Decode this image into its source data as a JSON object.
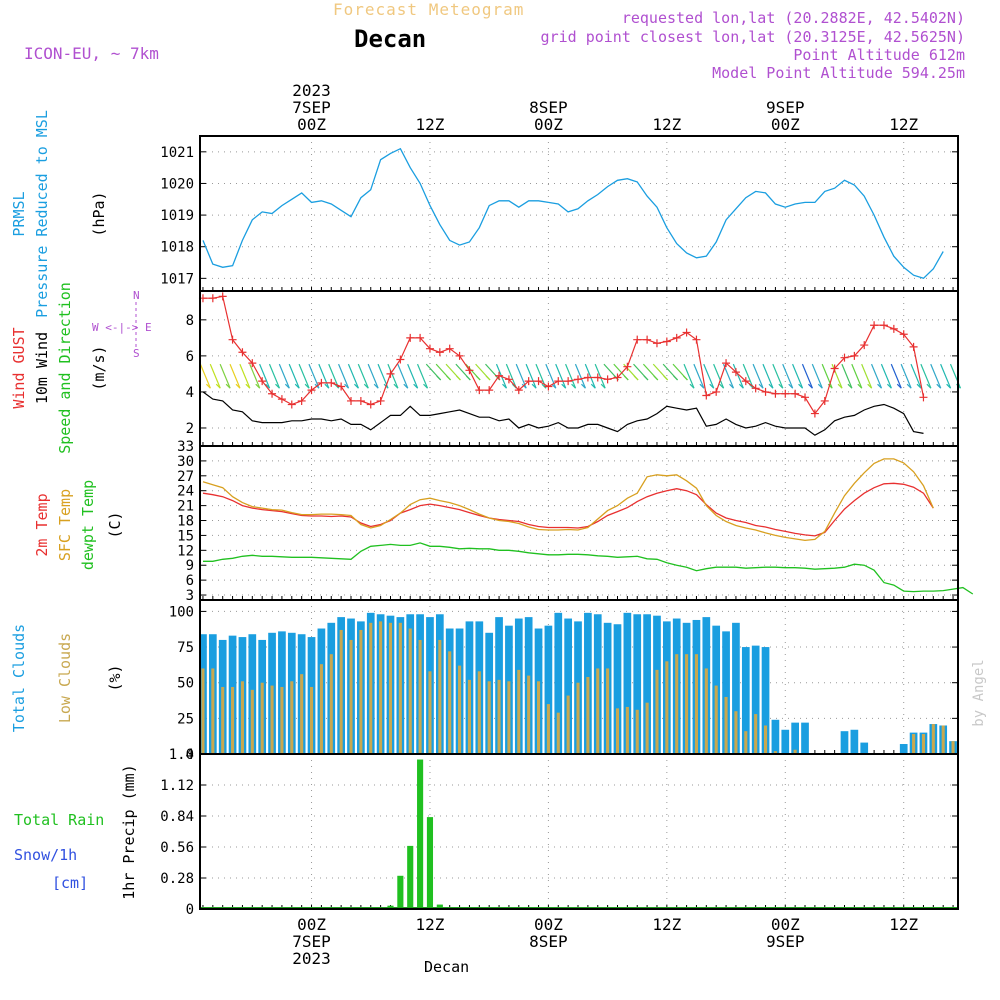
{
  "header": {
    "top_title": "Forecast Meteogram",
    "location": "Decan",
    "model": "ICON-EU, ~ 7km",
    "requested": "requested lon,lat (20.2882E, 42.5402N)",
    "grid_point": "grid point closest lon,lat (20.3125E, 42.5625N)",
    "point_alt": "Point Altitude 612m",
    "model_alt": "Model Point Altitude 594.25m",
    "footer_name": "Decan",
    "credit": "by Angel"
  },
  "time_axis": {
    "top_labels": [
      {
        "t": 6,
        "lines": [
          "2023",
          "7SEP",
          "00Z"
        ]
      },
      {
        "t": 18,
        "lines": [
          "12Z"
        ]
      },
      {
        "t": 30,
        "lines": [
          "8SEP",
          "00Z"
        ]
      },
      {
        "t": 42,
        "lines": [
          "12Z"
        ]
      },
      {
        "t": 54,
        "lines": [
          "9SEP",
          "00Z"
        ]
      },
      {
        "t": 66,
        "lines": [
          "12Z"
        ]
      }
    ],
    "bottom_labels": [
      {
        "t": 6,
        "lines": [
          "00Z",
          "7SEP",
          "2023"
        ]
      },
      {
        "t": 18,
        "lines": [
          "12Z"
        ]
      },
      {
        "t": 30,
        "lines": [
          "00Z",
          "8SEP"
        ]
      },
      {
        "t": 42,
        "lines": [
          "12Z"
        ]
      },
      {
        "t": 54,
        "lines": [
          "00Z",
          "9SEP"
        ]
      },
      {
        "t": 66,
        "lines": [
          "12Z"
        ]
      }
    ],
    "range_hours": [
      -5.3,
      71.5
    ]
  },
  "colors": {
    "pressure": "#1a9ee0",
    "gust": "#e83030",
    "wind": "#000000",
    "temp2m": "#e83030",
    "sfc": "#d8a020",
    "dewpt": "#20c020",
    "total_clouds": "#1a9ee0",
    "low_clouds": "#c8a850",
    "rain": "#20c020",
    "snow": "#3050e0",
    "purple": "#b050d0",
    "title": "#000000",
    "faint_title": "#f0c880"
  },
  "panel_labels": {
    "pressure": {
      "l1": "PRMSL",
      "l2": "Pressure Reduced to MSL",
      "unit": "(hPa)"
    },
    "wind": {
      "l1": "Wind GUST",
      "l2": "10m Wind",
      "l3": "Speed and Direction",
      "unit": "(m/s)",
      "compass_n": "N",
      "compass_s": "S",
      "compass_we": "W <-|-> E"
    },
    "temp": {
      "l1": "2m Temp",
      "l2": "SFC Temp",
      "l3": "dewpt Temp",
      "unit": "(C)"
    },
    "clouds": {
      "l1": "Total Clouds",
      "l2": "Low Clouds",
      "unit": "(%)"
    },
    "precip": {
      "l1": "Total  Rain",
      "l2": "Snow/1h",
      "l3": "[cm]",
      "unit": "1hr Precip (mm)"
    }
  },
  "chart_data": [
    {
      "type": "line",
      "title": "PRMSL Pressure Reduced to MSL",
      "ylabel": "(hPa)",
      "ylim": [
        1016.6,
        1021.5
      ],
      "yticks": [
        "1017",
        "1018",
        "1019",
        "1020",
        "1021"
      ],
      "series": [
        {
          "name": "PRMSL",
          "x_start": -5,
          "step": 1,
          "values": [
            1018.2,
            1017.45,
            1017.35,
            1017.4,
            1018.2,
            1018.85,
            1019.1,
            1019.05,
            1019.3,
            1019.5,
            1019.7,
            1019.4,
            1019.45,
            1019.35,
            1019.15,
            1018.95,
            1019.55,
            1019.8,
            1020.75,
            1020.95,
            1021.1,
            1020.5,
            1020.0,
            1019.3,
            1018.7,
            1018.2,
            1018.05,
            1018.15,
            1018.6,
            1019.3,
            1019.45,
            1019.45,
            1019.25,
            1019.45,
            1019.45,
            1019.4,
            1019.35,
            1019.1,
            1019.2,
            1019.45,
            1019.65,
            1019.9,
            1020.1,
            1020.15,
            1020.05,
            1019.6,
            1019.25,
            1018.6,
            1018.1,
            1017.8,
            1017.65,
            1017.7,
            1018.15,
            1018.85,
            1019.2,
            1019.55,
            1019.75,
            1019.7,
            1019.35,
            1019.25,
            1019.35,
            1019.4,
            1019.4,
            1019.75,
            1019.85,
            1020.1,
            1019.95,
            1019.6,
            1019.0,
            1018.3,
            1017.7,
            1017.35,
            1017.1,
            1017.0,
            1017.3,
            1017.85
          ]
        }
      ]
    },
    {
      "type": "line",
      "title": "Wind GUST / 10m Wind Speed and Direction",
      "ylabel": "(m/s)",
      "ylim": [
        1.0,
        9.6
      ],
      "yticks": [
        "2",
        "4",
        "6",
        "8"
      ],
      "series": [
        {
          "name": "Wind GUST",
          "x_start": -5,
          "step": 1,
          "values": [
            9.2,
            9.2,
            9.3,
            6.9,
            6.2,
            5.6,
            4.6,
            3.9,
            3.6,
            3.3,
            3.5,
            4.1,
            4.5,
            4.5,
            4.3,
            3.5,
            3.5,
            3.3,
            3.5,
            5.0,
            5.8,
            7.0,
            7.0,
            6.4,
            6.2,
            6.4,
            6.0,
            5.2,
            4.1,
            4.1,
            4.9,
            4.7,
            4.1,
            4.6,
            4.6,
            4.3,
            4.6,
            4.6,
            4.7,
            4.8,
            4.8,
            4.7,
            4.8,
            5.4,
            6.9,
            6.9,
            6.7,
            6.8,
            7.0,
            7.3,
            6.9,
            3.8,
            4.0,
            5.6,
            5.1,
            4.6,
            4.2,
            4.0,
            3.9,
            3.9,
            3.9,
            3.7,
            2.8,
            3.5,
            5.3,
            5.9,
            6.0,
            6.6,
            7.7,
            7.7,
            7.5,
            7.2,
            6.5,
            3.7
          ]
        },
        {
          "name": "10m Wind",
          "x_start": -5,
          "step": 1,
          "values": [
            4.0,
            3.6,
            3.5,
            3.0,
            2.9,
            2.4,
            2.3,
            2.3,
            2.3,
            2.4,
            2.4,
            2.5,
            2.5,
            2.4,
            2.5,
            2.2,
            2.2,
            1.9,
            2.3,
            2.7,
            2.7,
            3.2,
            2.7,
            2.7,
            2.8,
            2.9,
            3.0,
            2.8,
            2.6,
            2.6,
            2.4,
            2.5,
            2.0,
            2.2,
            2.0,
            2.1,
            2.3,
            2.0,
            2.0,
            2.2,
            2.2,
            2.0,
            1.8,
            2.2,
            2.4,
            2.5,
            2.8,
            3.2,
            3.1,
            3.0,
            3.1,
            2.1,
            2.2,
            2.5,
            2.2,
            2.0,
            2.1,
            2.3,
            2.1,
            2.0,
            2.0,
            2.0,
            1.6,
            1.9,
            2.4,
            2.6,
            2.7,
            3.0,
            3.2,
            3.3,
            3.1,
            2.8,
            1.8,
            1.7
          ]
        }
      ]
    },
    {
      "type": "line",
      "title": "2m Temp / SFC Temp / dewpt Temp",
      "ylabel": "(C)",
      "ylim": [
        2,
        33
      ],
      "yticks": [
        "3",
        "6",
        "9",
        "12",
        "15",
        "18",
        "21",
        "24",
        "27",
        "30",
        "33"
      ],
      "series": [
        {
          "name": "2m Temp",
          "x_start": -5,
          "step": 1,
          "values": [
            23.5,
            23.2,
            22.8,
            22.0,
            21.0,
            20.5,
            20.2,
            20.0,
            19.8,
            19.4,
            19.0,
            18.9,
            18.9,
            18.8,
            18.9,
            18.7,
            17.5,
            16.8,
            17.2,
            18.0,
            19.5,
            20.2,
            21.0,
            21.3,
            21.0,
            20.6,
            20.2,
            19.6,
            19.0,
            18.5,
            18.2,
            18.0,
            17.8,
            17.2,
            16.8,
            16.6,
            16.6,
            16.6,
            16.5,
            16.8,
            17.8,
            19.0,
            19.8,
            20.6,
            21.8,
            22.8,
            23.5,
            24.0,
            24.4,
            24.0,
            23.2,
            21.2,
            19.5,
            18.5,
            18.0,
            17.6,
            17.0,
            16.7,
            16.2,
            15.8,
            15.4,
            15.1,
            14.9,
            15.6,
            18.0,
            20.3,
            22.0,
            23.5,
            24.6,
            25.4,
            25.5,
            25.3,
            24.7,
            23.5,
            20.5
          ]
        },
        {
          "name": "SFC Temp",
          "x_start": -5,
          "step": 1,
          "values": [
            25.8,
            25.2,
            24.6,
            22.8,
            21.6,
            20.8,
            20.5,
            20.2,
            20.1,
            19.6,
            19.2,
            19.2,
            19.3,
            19.3,
            19.2,
            19.0,
            17.2,
            16.5,
            17.0,
            18.2,
            19.5,
            21.2,
            22.2,
            22.5,
            22.0,
            21.6,
            21.0,
            20.2,
            19.3,
            18.5,
            18.0,
            17.8,
            17.4,
            16.7,
            16.2,
            16.1,
            16.1,
            16.2,
            16.1,
            16.6,
            18.3,
            20.0,
            21.0,
            22.5,
            23.5,
            26.8,
            27.2,
            27.0,
            27.2,
            26.0,
            24.5,
            21.0,
            19.0,
            17.8,
            17.0,
            16.5,
            16.1,
            15.5,
            15.0,
            14.6,
            14.3,
            14.0,
            14.2,
            15.8,
            19.5,
            23.0,
            25.5,
            27.6,
            29.5,
            30.4,
            30.4,
            29.6,
            27.8,
            25.0,
            20.5
          ]
        },
        {
          "name": "dewpt Temp",
          "x_start": -5,
          "step": 1,
          "values": [
            9.8,
            9.8,
            10.2,
            10.4,
            10.8,
            11.0,
            10.8,
            10.8,
            10.7,
            10.6,
            10.6,
            10.6,
            10.5,
            10.4,
            10.3,
            10.2,
            11.8,
            12.8,
            13.0,
            13.2,
            13.0,
            13.0,
            13.5,
            12.8,
            12.8,
            12.6,
            12.3,
            12.4,
            12.3,
            12.3,
            12.0,
            12.0,
            11.8,
            11.5,
            11.3,
            11.1,
            11.1,
            11.2,
            11.2,
            11.1,
            10.9,
            10.8,
            10.6,
            10.7,
            10.8,
            10.3,
            10.2,
            9.5,
            9.0,
            8.6,
            7.9,
            8.3,
            8.6,
            8.6,
            8.6,
            8.4,
            8.5,
            8.6,
            8.6,
            8.5,
            8.5,
            8.4,
            8.2,
            8.3,
            8.4,
            8.6,
            9.2,
            9.0,
            8.0,
            5.5,
            5.0,
            3.8,
            3.7,
            3.8,
            3.8,
            3.9,
            4.2,
            4.5,
            3.2
          ]
        }
      ]
    },
    {
      "type": "bar",
      "title": "Total Clouds / Low Clouds",
      "ylabel": "(%)",
      "ylim": [
        0,
        108
      ],
      "yticks": [
        "0",
        "25",
        "50",
        "75",
        "100"
      ],
      "series": [
        {
          "name": "Total Clouds",
          "x_start": -5,
          "step": 1,
          "values": [
            84,
            84,
            80,
            83,
            82,
            84,
            80,
            85,
            86,
            85,
            84,
            82,
            88,
            92,
            96,
            95,
            93,
            99,
            98,
            97,
            96,
            98,
            98,
            96,
            98,
            88,
            88,
            93,
            93,
            85,
            96,
            90,
            95,
            96,
            88,
            90,
            99,
            95,
            93,
            99,
            98,
            92,
            91,
            99,
            98,
            98,
            97,
            93,
            95,
            92,
            94,
            96,
            90,
            86,
            92,
            75,
            76,
            75,
            24,
            17,
            22,
            22,
            0,
            0,
            0,
            16,
            17,
            8,
            0,
            0,
            0,
            7,
            15,
            15,
            21,
            20,
            9,
            0,
            0,
            0
          ]
        },
        {
          "name": "Low Clouds",
          "x_start": -5,
          "step": 1,
          "values": [
            60,
            60,
            47,
            47,
            51,
            45,
            50,
            48,
            47,
            51,
            56,
            47,
            63,
            70,
            87,
            80,
            87,
            92,
            93,
            92,
            92,
            88,
            80,
            58,
            80,
            72,
            62,
            52,
            58,
            51,
            52,
            51,
            59,
            55,
            51,
            35,
            29,
            41,
            50,
            54,
            60,
            60,
            32,
            33,
            31,
            36,
            59,
            65,
            70,
            70,
            70,
            60,
            48,
            40,
            30,
            16,
            28,
            20,
            2,
            0,
            3,
            0,
            0,
            0,
            0,
            0,
            0,
            0,
            0,
            0,
            0,
            0,
            14,
            14,
            21,
            20,
            9,
            0,
            0,
            0
          ]
        }
      ]
    },
    {
      "type": "bar",
      "title": "1hr Precip (mm)",
      "ylabel": "1hr Precip (mm)",
      "ylim": [
        0,
        1.4
      ],
      "yticks": [
        "0",
        "0.28",
        "0.56",
        "0.84",
        "1.12",
        "1.4"
      ],
      "series": [
        {
          "name": "Total Rain",
          "x": [
            14,
            15,
            16,
            17,
            18,
            19
          ],
          "values": [
            0.03,
            0.3,
            0.57,
            1.35,
            0.83,
            0.04
          ]
        }
      ]
    }
  ]
}
